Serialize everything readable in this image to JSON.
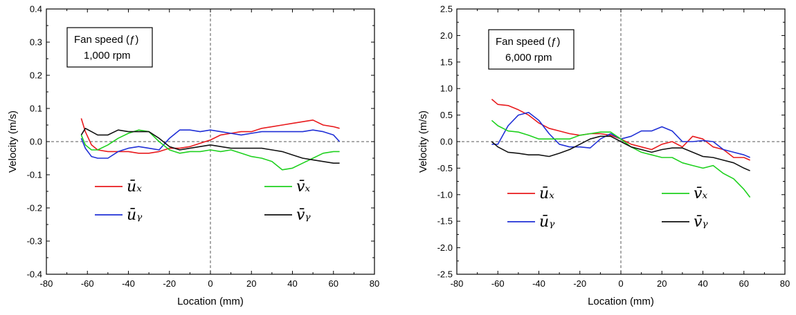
{
  "chart_data": [
    {
      "type": "line",
      "xlabel": "Location (mm)",
      "ylabel": "Velocity (m/s)",
      "xlim": [
        -80,
        80
      ],
      "ylim": [
        -0.4,
        0.4
      ],
      "xticks": [
        "-80",
        "-60",
        "-40",
        "-20",
        "0",
        "20",
        "40",
        "60",
        "80"
      ],
      "yticks": [
        "-0.4",
        "-0.3",
        "-0.2",
        "-0.1",
        "0.0",
        "0.1",
        "0.2",
        "0.3",
        "0.4"
      ],
      "annotation": [
        "Fan speed (ƒ)",
        "1,000 rpm"
      ],
      "grid": false,
      "legend": "inside-lower",
      "series": [
        {
          "name": "ūₓ",
          "color": "#e8191c",
          "x": [
            -63,
            -61,
            -58,
            -55,
            -50,
            -45,
            -40,
            -35,
            -30,
            -25,
            -20,
            -15,
            -10,
            -5,
            0,
            5,
            10,
            15,
            20,
            25,
            30,
            35,
            40,
            45,
            50,
            55,
            60,
            63
          ],
          "y": [
            0.07,
            0.03,
            -0.01,
            -0.025,
            -0.03,
            -0.03,
            -0.03,
            -0.035,
            -0.035,
            -0.03,
            -0.02,
            -0.02,
            -0.015,
            -0.005,
            0.005,
            0.02,
            0.025,
            0.03,
            0.03,
            0.04,
            0.045,
            0.05,
            0.055,
            0.06,
            0.065,
            0.05,
            0.045,
            0.04
          ]
        },
        {
          "name": "ūᵧ",
          "color": "#1f2fd6",
          "x": [
            -63,
            -61,
            -58,
            -55,
            -50,
            -45,
            -40,
            -35,
            -30,
            -25,
            -20,
            -15,
            -10,
            -5,
            0,
            5,
            10,
            15,
            20,
            25,
            30,
            35,
            40,
            45,
            50,
            55,
            60,
            63
          ],
          "y": [
            0.01,
            -0.02,
            -0.045,
            -0.05,
            -0.05,
            -0.03,
            -0.02,
            -0.015,
            -0.02,
            -0.025,
            0.01,
            0.035,
            0.035,
            0.03,
            0.035,
            0.03,
            0.025,
            0.02,
            0.025,
            0.03,
            0.03,
            0.03,
            0.03,
            0.03,
            0.035,
            0.03,
            0.02,
            0.0
          ]
        },
        {
          "name": "v̄ₓ",
          "color": "#1ed11e",
          "x": [
            -63,
            -61,
            -58,
            -55,
            -50,
            -45,
            -40,
            -35,
            -30,
            -25,
            -20,
            -15,
            -10,
            -5,
            0,
            5,
            10,
            15,
            20,
            25,
            30,
            35,
            40,
            45,
            50,
            55,
            60,
            63
          ],
          "y": [
            0.02,
            -0.01,
            -0.025,
            -0.025,
            -0.01,
            0.01,
            0.025,
            0.035,
            0.03,
            0.0,
            -0.025,
            -0.035,
            -0.03,
            -0.03,
            -0.025,
            -0.03,
            -0.025,
            -0.035,
            -0.045,
            -0.05,
            -0.06,
            -0.085,
            -0.08,
            -0.065,
            -0.05,
            -0.035,
            -0.03,
            -0.03
          ]
        },
        {
          "name": "v̄ᵧ",
          "color": "#111111",
          "x": [
            -63,
            -61,
            -58,
            -55,
            -50,
            -45,
            -40,
            -35,
            -30,
            -25,
            -20,
            -15,
            -10,
            -5,
            0,
            5,
            10,
            15,
            20,
            25,
            30,
            35,
            40,
            45,
            50,
            55,
            60,
            63
          ],
          "y": [
            0.02,
            0.04,
            0.03,
            0.02,
            0.02,
            0.035,
            0.03,
            0.03,
            0.03,
            0.01,
            -0.015,
            -0.025,
            -0.02,
            -0.015,
            -0.01,
            -0.015,
            -0.02,
            -0.02,
            -0.02,
            -0.02,
            -0.025,
            -0.03,
            -0.04,
            -0.05,
            -0.055,
            -0.06,
            -0.065,
            -0.065
          ]
        }
      ]
    },
    {
      "type": "line",
      "xlabel": "Location (mm)",
      "ylabel": "Velocity (m/s)",
      "xlim": [
        -80,
        80
      ],
      "ylim": [
        -2.5,
        2.5
      ],
      "xticks": [
        "-80",
        "-60",
        "-40",
        "-20",
        "0",
        "20",
        "40",
        "60",
        "80"
      ],
      "yticks": [
        "-2.5",
        "-2.0",
        "-1.5",
        "-1.0",
        "-0.5",
        "0.0",
        "0.5",
        "1.0",
        "1.5",
        "2.0",
        "2.5"
      ],
      "annotation": [
        "Fan speed (ƒ)",
        "6,000 rpm"
      ],
      "grid": false,
      "legend": "inside-lower",
      "series": [
        {
          "name": "ūₓ",
          "color": "#e8191c",
          "x": [
            -63,
            -60,
            -55,
            -50,
            -45,
            -40,
            -35,
            -30,
            -25,
            -20,
            -15,
            -10,
            -5,
            0,
            5,
            10,
            15,
            20,
            25,
            30,
            35,
            40,
            45,
            50,
            55,
            60,
            63
          ],
          "y": [
            0.8,
            0.7,
            0.68,
            0.6,
            0.5,
            0.35,
            0.25,
            0.2,
            0.15,
            0.12,
            0.15,
            0.15,
            0.12,
            0.05,
            -0.05,
            -0.1,
            -0.15,
            -0.05,
            0.0,
            -0.1,
            0.1,
            0.05,
            -0.1,
            -0.15,
            -0.3,
            -0.3,
            -0.35
          ]
        },
        {
          "name": "ūᵧ",
          "color": "#1f2fd6",
          "x": [
            -63,
            -60,
            -55,
            -50,
            -45,
            -40,
            -35,
            -30,
            -25,
            -20,
            -15,
            -10,
            -5,
            0,
            5,
            10,
            15,
            20,
            25,
            30,
            35,
            40,
            45,
            50,
            55,
            60,
            63
          ],
          "y": [
            -0.05,
            -0.05,
            0.3,
            0.5,
            0.55,
            0.4,
            0.15,
            -0.05,
            -0.1,
            -0.1,
            -0.12,
            0.05,
            0.15,
            0.05,
            0.1,
            0.2,
            0.2,
            0.28,
            0.2,
            0.0,
            0.0,
            0.02,
            0.0,
            -0.15,
            -0.2,
            -0.25,
            -0.3
          ]
        },
        {
          "name": "v̄ₓ",
          "color": "#1ed11e",
          "x": [
            -63,
            -60,
            -55,
            -50,
            -45,
            -40,
            -35,
            -30,
            -25,
            -20,
            -15,
            -10,
            -5,
            0,
            5,
            10,
            15,
            20,
            25,
            30,
            35,
            40,
            45,
            50,
            55,
            60,
            63
          ],
          "y": [
            0.4,
            0.3,
            0.2,
            0.18,
            0.12,
            0.05,
            0.05,
            0.05,
            0.05,
            0.12,
            0.15,
            0.18,
            0.18,
            0.05,
            -0.1,
            -0.2,
            -0.25,
            -0.3,
            -0.3,
            -0.4,
            -0.45,
            -0.5,
            -0.45,
            -0.6,
            -0.7,
            -0.9,
            -1.05
          ]
        },
        {
          "name": "v̄ᵧ",
          "color": "#111111",
          "x": [
            -63,
            -60,
            -55,
            -50,
            -45,
            -40,
            -35,
            -30,
            -25,
            -20,
            -15,
            -10,
            -5,
            0,
            5,
            10,
            15,
            20,
            25,
            30,
            35,
            40,
            45,
            50,
            55,
            60,
            63
          ],
          "y": [
            0.0,
            -0.1,
            -0.2,
            -0.22,
            -0.25,
            -0.25,
            -0.28,
            -0.22,
            -0.15,
            -0.05,
            0.05,
            0.1,
            0.1,
            0.0,
            -0.1,
            -0.15,
            -0.2,
            -0.15,
            -0.12,
            -0.12,
            -0.2,
            -0.28,
            -0.3,
            -0.35,
            -0.4,
            -0.5,
            -0.55
          ]
        }
      ]
    }
  ]
}
